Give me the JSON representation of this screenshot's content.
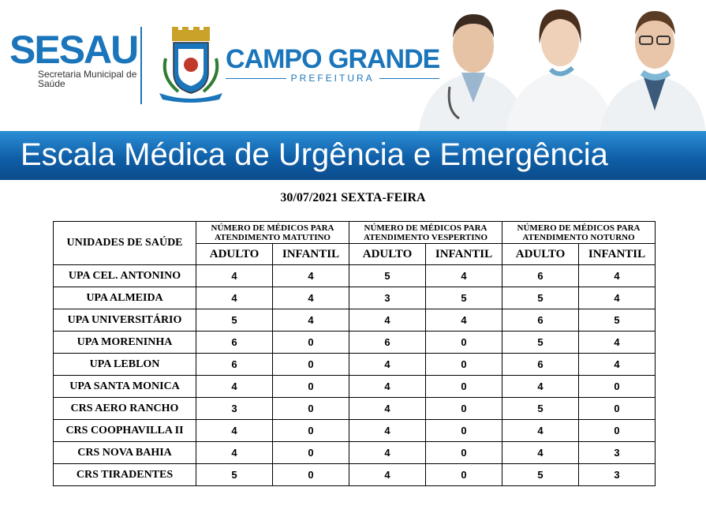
{
  "header": {
    "brand": "SESAU",
    "brand_subtitle": "Secretaria Municipal de Saúde",
    "city_name": "CAMPO GRANDE",
    "city_subtitle": "PREFEITURA",
    "banner_title": "Escala Médica de Urgência e Emergência",
    "colors": {
      "brand_blue": "#1b75bb",
      "banner_blue": "#0f5fa8"
    }
  },
  "date_line": "30/07/2021 SEXTA-FEIRA",
  "table": {
    "unit_header": "UNIDADES DE SAÚDE",
    "groups": [
      "NÚMERO DE MÉDICOS PARA ATENDIMENTO MATUTINO",
      "NÚMERO DE MÉDICOS PARA ATENDIMENTO VESPERTINO",
      "NÚMERO DE MÉDICOS PARA ATENDIMENTO NOTURNO"
    ],
    "subheaders": [
      "ADULTO",
      "INFANTIL",
      "ADULTO",
      "INFANTIL",
      "ADULTO",
      "INFANTIL"
    ],
    "rows": [
      {
        "unit": "UPA CEL. ANTONINO",
        "values": [
          "4",
          "4",
          "5",
          "4",
          "6",
          "4"
        ]
      },
      {
        "unit": "UPA ALMEIDA",
        "values": [
          "4",
          "4",
          "3",
          "5",
          "5",
          "4"
        ]
      },
      {
        "unit": "UPA UNIVERSITÁRIO",
        "values": [
          "5",
          "4",
          "4",
          "4",
          "6",
          "5"
        ]
      },
      {
        "unit": "UPA MORENINHA",
        "values": [
          "6",
          "0",
          "6",
          "0",
          "5",
          "4"
        ]
      },
      {
        "unit": "UPA LEBLON",
        "values": [
          "6",
          "0",
          "4",
          "0",
          "6",
          "4"
        ]
      },
      {
        "unit": "UPA SANTA MONICA",
        "values": [
          "4",
          "0",
          "4",
          "0",
          "4",
          "0"
        ]
      },
      {
        "unit": "CRS AERO RANCHO",
        "values": [
          "3",
          "0",
          "4",
          "0",
          "5",
          "0"
        ]
      },
      {
        "unit": "CRS COOPHAVILLA II",
        "values": [
          "4",
          "0",
          "4",
          "0",
          "4",
          "0"
        ]
      },
      {
        "unit": "CRS NOVA BAHIA",
        "values": [
          "4",
          "0",
          "4",
          "0",
          "4",
          "3"
        ]
      },
      {
        "unit": "CRS TIRADENTES",
        "values": [
          "5",
          "0",
          "4",
          "0",
          "5",
          "3"
        ]
      }
    ]
  }
}
